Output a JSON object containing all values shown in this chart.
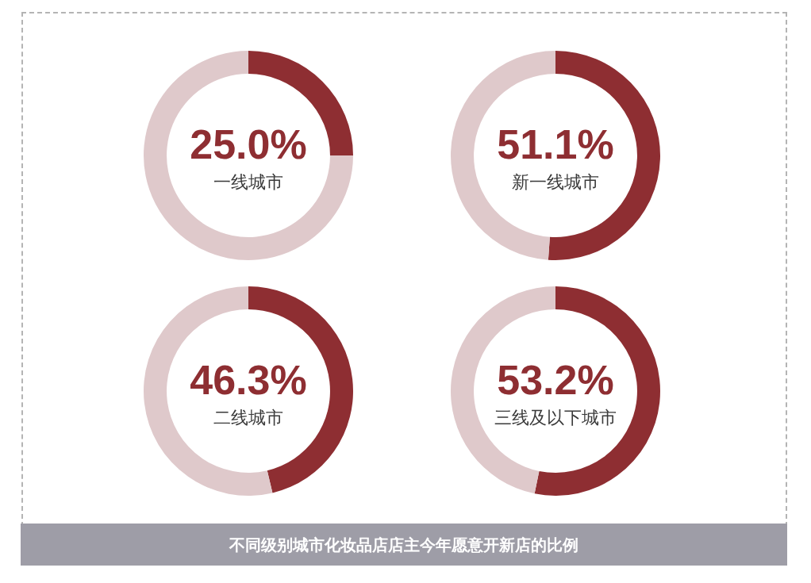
{
  "chart_data": [
    {
      "type": "donut",
      "title": "一线城市",
      "categories": [
        null,
        null
      ],
      "values": [
        25.0,
        75.0
      ],
      "colors": [
        "#8e2e32",
        "#dfc9cb"
      ],
      "value_labels": [
        "25.0%",
        null
      ]
    },
    {
      "type": "donut",
      "title": "新一线城市",
      "categories": [
        null,
        null
      ],
      "values": [
        51.1,
        48.9
      ],
      "colors": [
        "#8e2e32",
        "#dfc9cb"
      ],
      "value_labels": [
        "51.1%",
        null
      ]
    },
    {
      "type": "donut",
      "title": "二线城市",
      "categories": [
        null,
        null
      ],
      "values": [
        46.3,
        53.7
      ],
      "colors": [
        "#8e2e32",
        "#dfc9cb"
      ],
      "value_labels": [
        "46.3%",
        null
      ]
    },
    {
      "type": "donut",
      "title": "三线及以下城市",
      "categories": [
        null,
        null
      ],
      "values": [
        53.2,
        46.8
      ],
      "colors": [
        "#8e2e32",
        "#dfc9cb"
      ],
      "value_labels": [
        "53.2%",
        null
      ]
    },
    {
      "type": "other",
      "title": "不同级别城市化妆品店店主今年愿意开新店的比例"
    }
  ]
}
